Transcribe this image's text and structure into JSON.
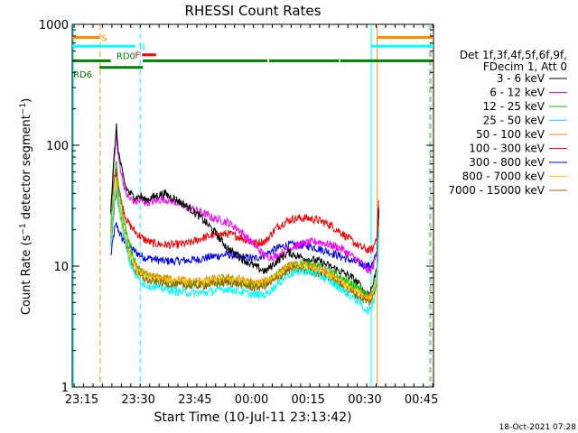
{
  "chart_data": {
    "type": "line",
    "title": "RHESSI Count Rates",
    "xlabel": "Start Time (10-Jul-11 23:13:42)",
    "ylabel": "Count Rate (s⁻¹ detector segment⁻¹)",
    "ylabel_main": "Count Rate (s",
    "ylabel_sup1": "−1",
    "ylabel_mid": " detector segment",
    "ylabel_sup2": "−1",
    "ylabel_end": ")",
    "yscale": "log",
    "ylim": [
      1,
      1000
    ],
    "xlim_minutes": [
      -1.2,
      94.5
    ],
    "ytick_labels": [
      "1",
      "10",
      "100",
      "1000"
    ],
    "ytick_values": [
      1,
      10,
      100,
      1000
    ],
    "xtick_labels": [
      "23:15",
      "23:30",
      "23:45",
      "00:00",
      "00:15",
      "00:30",
      "00:45"
    ],
    "xtick_minutes": [
      1.3,
      16.3,
      31.3,
      46.3,
      61.3,
      76.3,
      91.3
    ],
    "legend_header": [
      "Det 1f,3f,4f,5f,6f,9f,",
      "FDecim 1, Att 0"
    ],
    "legend_position": "right",
    "date_stamp": "18-Oct-2021 07:28",
    "x_minutes": [
      0,
      5,
      7,
      9,
      10,
      10.5,
      11,
      12,
      13,
      14,
      15,
      16,
      17,
      18,
      20,
      23,
      26,
      30,
      33,
      36,
      40,
      43,
      47,
      50,
      53,
      56,
      59,
      61,
      64,
      67,
      70,
      73,
      75,
      76,
      77.5,
      78.5,
      79.5,
      80
    ],
    "series": [
      {
        "name": "3 - 6 keV",
        "color": "#000000",
        "values": [
          null,
          null,
          null,
          30,
          90,
          140,
          90,
          60,
          45,
          40,
          38,
          37,
          38,
          35,
          37,
          40,
          36,
          30,
          25,
          20,
          14,
          12,
          10,
          9,
          11,
          13,
          12,
          11.5,
          11,
          10,
          9,
          8,
          7,
          6,
          6,
          7,
          10,
          30
        ]
      },
      {
        "name": "6 - 12 keV",
        "color": "#ff00ff",
        "values": [
          null,
          null,
          null,
          28,
          80,
          125,
          80,
          55,
          40,
          36,
          35,
          34,
          35,
          34,
          34,
          36,
          34,
          30,
          28,
          25,
          23,
          20,
          15,
          12,
          12,
          14,
          15,
          15.5,
          16,
          15,
          14,
          12,
          11,
          10,
          9,
          10,
          13,
          32
        ]
      },
      {
        "name": "12 - 25 keV",
        "color": "#00cc00",
        "values": [
          null,
          null,
          null,
          20,
          55,
          70,
          50,
          30,
          20,
          15,
          12,
          10,
          9,
          8.5,
          8.2,
          8,
          7.5,
          7,
          7.2,
          7.5,
          7.8,
          7.5,
          7,
          7.2,
          8.5,
          10,
          10.5,
          10.5,
          10,
          9,
          8,
          7,
          6.5,
          6,
          5.5,
          6,
          8,
          22
        ]
      },
      {
        "name": "25 - 50 keV",
        "color": "#00ffff",
        "values": [
          null,
          null,
          null,
          15,
          35,
          45,
          35,
          22,
          15,
          11,
          9,
          8,
          7.5,
          7,
          6.8,
          6.5,
          6.2,
          6,
          6,
          6.2,
          6.5,
          6.2,
          5.8,
          5.8,
          7,
          8.5,
          9,
          9,
          8.5,
          7.5,
          6.5,
          5.5,
          5,
          4.5,
          4.2,
          5,
          7,
          20
        ]
      },
      {
        "name": "50 - 100 keV",
        "color": "#ff8c00",
        "values": [
          null,
          null,
          null,
          18,
          40,
          55,
          40,
          25,
          17,
          13,
          10.5,
          9.5,
          9,
          8.6,
          8.2,
          8,
          7.8,
          7.5,
          7.5,
          7.8,
          8,
          7.8,
          7.2,
          7.5,
          8.5,
          10,
          10.2,
          10,
          9.5,
          8.5,
          7.5,
          6.5,
          6,
          5.8,
          5.5,
          6,
          8,
          22
        ]
      },
      {
        "name": "100 - 300 keV",
        "color": "#ff0000",
        "values": [
          null,
          null,
          null,
          30,
          55,
          60,
          45,
          32,
          25,
          22,
          20,
          18.5,
          17.5,
          16.5,
          15.5,
          15,
          15,
          15.5,
          17,
          18,
          18.5,
          17.5,
          15.5,
          16,
          21,
          24,
          25,
          25,
          24,
          22,
          19,
          16,
          14.5,
          14,
          13.5,
          14,
          18,
          35
        ]
      },
      {
        "name": "300 - 800 keV",
        "color": "#0000ff",
        "values": [
          null,
          null,
          null,
          12,
          20,
          22,
          20,
          17,
          15.5,
          14.5,
          13.5,
          12.8,
          12.2,
          11.8,
          11.5,
          11,
          11,
          11.2,
          11.5,
          12,
          12.5,
          12,
          11.5,
          12.5,
          14,
          15,
          15,
          14.8,
          14,
          13,
          12,
          11,
          10.5,
          10.2,
          10,
          10.5,
          13,
          28
        ]
      },
      {
        "name": "800 - 7000 keV",
        "color": "#ffcc00",
        "values": [
          null,
          null,
          null,
          16,
          36,
          48,
          36,
          24,
          16,
          12,
          10,
          9,
          8.5,
          8.2,
          7.8,
          7.6,
          7.4,
          7.2,
          7.2,
          7.4,
          7.6,
          7.4,
          6.9,
          7.2,
          8.2,
          9.6,
          9.8,
          9.6,
          9.1,
          8.2,
          7.2,
          6.3,
          5.8,
          5.6,
          5.3,
          5.8,
          7.8,
          21
        ]
      },
      {
        "name": "7000 - 15000 keV",
        "color": "#8b6914",
        "values": [
          null,
          null,
          null,
          14,
          32,
          42,
          32,
          22,
          15,
          11.5,
          9.5,
          8.6,
          8.1,
          7.8,
          7.4,
          7.2,
          7,
          6.9,
          6.9,
          7.1,
          7.3,
          7.1,
          6.6,
          6.9,
          7.8,
          9.2,
          9.4,
          9.2,
          8.7,
          7.8,
          6.9,
          6,
          5.5,
          5.3,
          5,
          5.5,
          7.4,
          20
        ]
      }
    ],
    "flags": [
      {
        "label": "S",
        "color": "#ff8c00",
        "level": 780,
        "segments": [
          [
            -1.2,
            6
          ],
          [
            79.5,
            94.5
          ]
        ]
      },
      {
        "label": "N",
        "color": "#00ffff",
        "level": 660,
        "segments": [
          [
            -1.2,
            15.5
          ],
          [
            78,
            94.5
          ]
        ]
      },
      {
        "label": "F",
        "color": "#ff0000",
        "level": 560,
        "segments": [
          [
            17.3,
            21
          ]
        ]
      },
      {
        "label": "RD0",
        "color": "#008000",
        "level": 500,
        "segments": [
          [
            -1.2,
            9
          ],
          [
            17.5,
            50.5
          ],
          [
            51,
            69.5
          ],
          [
            69.8,
            94.5
          ]
        ]
      },
      {
        "label": "RD6",
        "color": "#008000",
        "level": 440,
        "segments": [
          [
            6,
            17.5
          ]
        ]
      }
    ],
    "vlines": [
      {
        "minute": -0.9,
        "color": "#00ffff",
        "dashed": false
      },
      {
        "minute": 6.2,
        "color": "#ff8c00",
        "dashed": true
      },
      {
        "minute": 16.8,
        "color": "#00ffff",
        "dashed": true
      },
      {
        "minute": 78,
        "color": "#00ffff",
        "dashed": false
      },
      {
        "minute": 79.6,
        "color": "#ff8c00",
        "dashed": false
      },
      {
        "minute": 93.5,
        "color": "#00ffff",
        "dashed": true
      },
      {
        "minute": 93.8,
        "color": "#ff8c00",
        "dashed": true
      }
    ]
  }
}
